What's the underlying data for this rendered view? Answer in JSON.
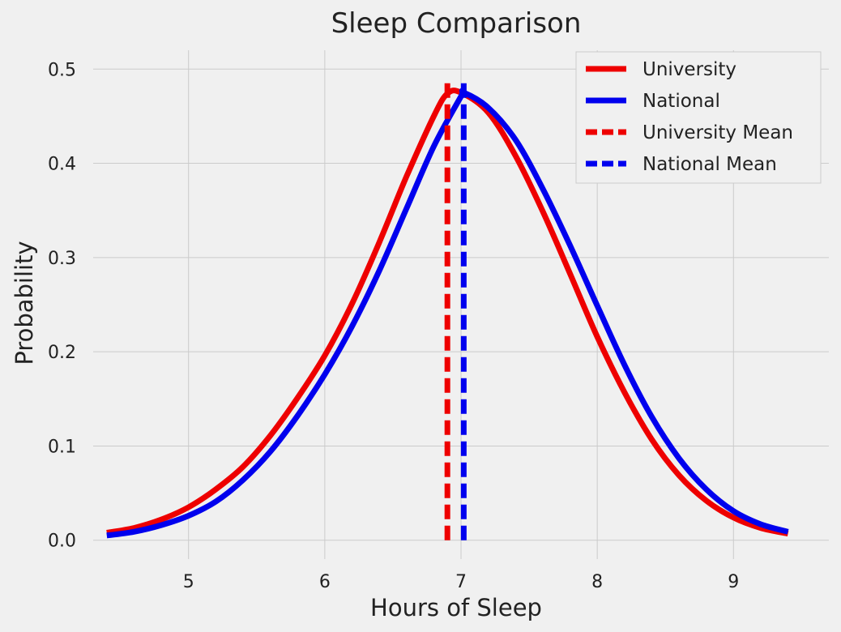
{
  "chart_data": {
    "type": "line",
    "title": "Sleep Comparison",
    "xlabel": "Hours of Sleep",
    "ylabel": "Probability",
    "xlim": [
      4.3,
      9.7
    ],
    "ylim": [
      -0.02,
      0.52
    ],
    "xticks": [
      5,
      6,
      7,
      8,
      9
    ],
    "xtick_labels": [
      "5",
      "6",
      "7",
      "8",
      "9"
    ],
    "yticks": [
      0.0,
      0.1,
      0.2,
      0.3,
      0.4,
      0.5
    ],
    "ytick_labels": [
      "0.0",
      "0.1",
      "0.2",
      "0.3",
      "0.4",
      "0.5"
    ],
    "grid": true,
    "legend_position": "top-right",
    "series": [
      {
        "name": "University",
        "color": "#ee0000",
        "style": "solid",
        "x": [
          4.4,
          4.6,
          4.8,
          5.0,
          5.2,
          5.4,
          5.6,
          5.8,
          6.0,
          6.2,
          6.4,
          6.6,
          6.8,
          6.9,
          7.0,
          7.2,
          7.4,
          7.6,
          7.8,
          8.0,
          8.2,
          8.4,
          8.6,
          8.8,
          9.0,
          9.2,
          9.4
        ],
        "y": [
          0.008,
          0.013,
          0.022,
          0.035,
          0.054,
          0.078,
          0.111,
          0.151,
          0.196,
          0.251,
          0.316,
          0.386,
          0.45,
          0.474,
          0.475,
          0.454,
          0.408,
          0.349,
          0.283,
          0.216,
          0.157,
          0.107,
          0.069,
          0.042,
          0.024,
          0.013,
          0.007
        ]
      },
      {
        "name": "National",
        "color": "#0000ee",
        "style": "solid",
        "x": [
          4.4,
          4.6,
          4.8,
          5.0,
          5.2,
          5.4,
          5.6,
          5.8,
          6.0,
          6.2,
          6.4,
          6.6,
          6.8,
          7.0,
          7.02,
          7.2,
          7.4,
          7.6,
          7.8,
          8.0,
          8.2,
          8.4,
          8.6,
          8.8,
          9.0,
          9.2,
          9.4
        ],
        "y": [
          0.005,
          0.009,
          0.016,
          0.026,
          0.041,
          0.064,
          0.094,
          0.132,
          0.176,
          0.227,
          0.286,
          0.352,
          0.418,
          0.471,
          0.475,
          0.459,
          0.425,
          0.373,
          0.313,
          0.249,
          0.186,
          0.131,
          0.087,
          0.054,
          0.031,
          0.017,
          0.009
        ]
      }
    ],
    "vlines": [
      {
        "name": "University Mean",
        "x": 6.9,
        "y_range": [
          0,
          0.49
        ],
        "color": "#ee0000",
        "style": "dashed"
      },
      {
        "name": "National Mean",
        "x": 7.02,
        "y_range": [
          0,
          0.49
        ],
        "color": "#0000ee",
        "style": "dashed"
      }
    ]
  }
}
